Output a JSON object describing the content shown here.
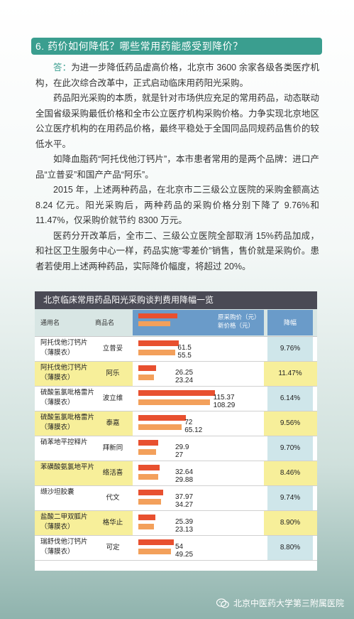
{
  "header": {
    "title": "6. 药价如何降低？哪些常用药能感受到降价？"
  },
  "article": {
    "answer_label": "答：",
    "paragraphs": [
      "为进一步降低药品虚高价格，北京市 3600 余家各级各类医疗机构，在此次综合改革中，正式启动临床用药阳光采购。",
      "药品阳光采购的本质，就是针对市场供应充足的常用药品，动态联动全国省级采购最低价格和全市公立医疗机构采购价格。力争实现北京地区公立医疗机构的在用药品价格，最终平稳处于全国同品同规药品售价的较低水平。",
      "如降血脂药“阿托伐他汀钙片”，本市患者常用的是两个品牌：进口产品“立普妥”和国产产品“阿乐”。",
      "2015 年，上述两种药品，在北京市二三级公立医院的采购金额高达 8.24 亿元。阳光采购后，两种药品的采购价格分别下降了 9.76%和 11.47%，仅采购价就节约 8300 万元。",
      "医药分开改革后，全市二、三级公立医院全部取消 15%药品加成，和社区卫生服务中心一样，药品实施“零差价”销售，售价就是采购价。患者若使用上述两种药品，实际降价幅度，将超过 20%。"
    ]
  },
  "table": {
    "title": "北京临床常用药品阳光采购谈判费用降幅一览",
    "headers": {
      "name": "通用名",
      "brand": "商品名",
      "orig_price": "原采购价（元）",
      "new_price": "新价格（元）",
      "drop": "降幅"
    },
    "colors": {
      "orig": "#e8502f",
      "new": "#f3a05b"
    },
    "rows": [
      {
        "name": "阿托伐他汀钙片（薄膜衣）",
        "brand": "立普妥",
        "orig": "61.5",
        "new": "55.5",
        "drop": "9.76%"
      },
      {
        "name": "阿托伐他汀钙片（薄膜衣）",
        "brand": "阿乐",
        "orig": "26.25",
        "new": "23.24",
        "drop": "11.47%"
      },
      {
        "name": "硫酸氢氯吡格雷片（薄膜衣）",
        "brand": "波立维",
        "orig": "115.37",
        "new": "108.29",
        "drop": "6.14%"
      },
      {
        "name": "硫酸氢氯吡格雷片（薄膜衣）",
        "brand": "泰嘉",
        "orig": "72",
        "new": "65.12",
        "drop": "9.56%"
      },
      {
        "name": "硝苯地平控释片",
        "brand": "拜新同",
        "orig": "29.9",
        "new": "27",
        "drop": "9.70%"
      },
      {
        "name": "苯磺酸氨氯地平片",
        "brand": "络活喜",
        "orig": "32.64",
        "new": "29.88",
        "drop": "8.46%"
      },
      {
        "name": "缬沙坦胶囊",
        "brand": "代文",
        "orig": "37.97",
        "new": "34.27",
        "drop": "9.74%"
      },
      {
        "name": "盐酸二甲双胍片（薄膜衣）",
        "brand": "格华止",
        "orig": "25.39",
        "new": "23.13",
        "drop": "8.90%"
      },
      {
        "name": "瑞舒伐他汀钙片（薄膜衣）",
        "brand": "可定",
        "orig": "54",
        "new": "49.25",
        "drop": "8.80%"
      }
    ]
  },
  "footer": {
    "text": "北京中医药大学第三附属医院",
    "icon": "wechat-icon"
  }
}
